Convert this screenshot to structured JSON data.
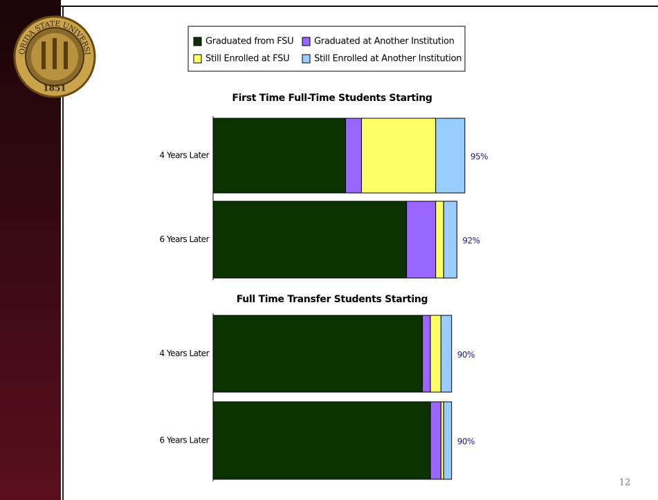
{
  "chart_data": [
    {
      "type": "stacked-bar-horizontal",
      "title": "First Time Full-Time Students Starting",
      "categories": [
        "4 Years Later",
        "6 Years Later"
      ],
      "xlim": [
        0,
        100
      ],
      "series": [
        {
          "name": "Graduated from FSU",
          "color": "#0a3300",
          "values": [
            50,
            73
          ]
        },
        {
          "name": "Graduated at Another Institution",
          "color": "#9966ff",
          "values": [
            6,
            11
          ]
        },
        {
          "name": "Still Enrolled at FSU",
          "color": "#ffff66",
          "values": [
            28,
            3
          ]
        },
        {
          "name": "Still Enrolled at Another Institution",
          "color": "#99ccff",
          "values": [
            11,
            5
          ]
        }
      ],
      "totals": [
        95,
        92
      ],
      "total_labels": [
        "95%",
        "92%"
      ]
    },
    {
      "type": "stacked-bar-horizontal",
      "title": "Full Time Transfer Students Starting",
      "categories": [
        "4 Years Later",
        "6 Years Later"
      ],
      "xlim": [
        0,
        100
      ],
      "series": [
        {
          "values": [
            79,
            82
          ]
        },
        {
          "values": [
            3,
            4
          ]
        },
        {
          "values": [
            4,
            1
          ]
        },
        {
          "values": [
            4,
            3
          ]
        }
      ],
      "totals": [
        90,
        90
      ],
      "total_labels": [
        "90%",
        "90%"
      ]
    }
  ],
  "logo": {
    "text": "FLORIDA STATE UNIVERSITY",
    "year": "1851"
  },
  "page_number": "12"
}
